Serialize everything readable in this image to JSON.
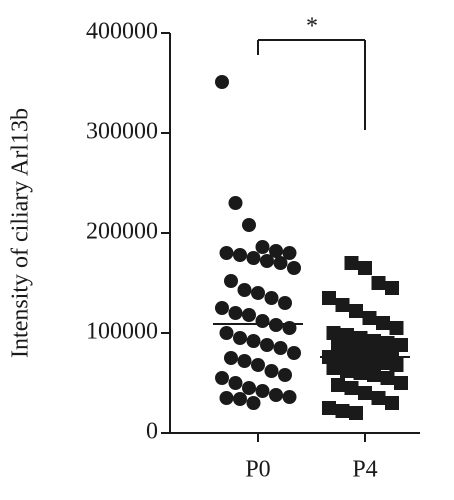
{
  "chart_data": {
    "type": "strip",
    "y_label": "Intensity of ciliary Arl13b",
    "categories": [
      "P0",
      "P4"
    ],
    "series": [
      {
        "name": "P0",
        "color": "#1a1a1a",
        "marker": "circle",
        "median": 109000,
        "values": [
          351000,
          230000,
          208000,
          186000,
          182000,
          180000,
          180000,
          178000,
          175000,
          172000,
          170000,
          165000,
          152000,
          143000,
          140000,
          135000,
          130000,
          125000,
          120000,
          118000,
          112000,
          108000,
          105000,
          100000,
          95000,
          92000,
          88000,
          85000,
          80000,
          75000,
          72000,
          68000,
          62000,
          58000,
          55000,
          50000,
          45000,
          42000,
          38000,
          36000,
          35000,
          34000,
          30000
        ]
      },
      {
        "name": "P4",
        "color": "#1a1a1a",
        "marker": "square",
        "median": 76000,
        "values": [
          170000,
          165000,
          150000,
          145000,
          135000,
          128000,
          122000,
          115000,
          110000,
          105000,
          100000,
          98000,
          95000,
          92000,
          90000,
          88000,
          86000,
          85000,
          83000,
          80000,
          78000,
          76000,
          75000,
          74000,
          72000,
          70000,
          68000,
          65000,
          62000,
          60000,
          58000,
          55000,
          50000,
          48000,
          45000,
          40000,
          35000,
          30000,
          25000,
          22000,
          20000
        ]
      }
    ],
    "annotations": [
      {
        "text": "*"
      }
    ],
    "ylim": [
      0,
      400000
    ],
    "yticks": [
      0,
      100000,
      200000,
      300000,
      400000
    ]
  }
}
